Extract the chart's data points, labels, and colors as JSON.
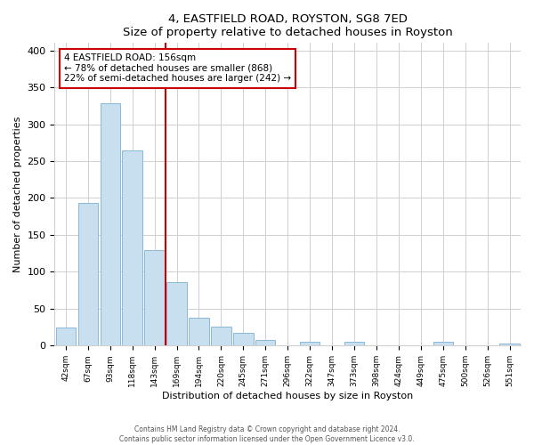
{
  "title": "4, EASTFIELD ROAD, ROYSTON, SG8 7ED",
  "subtitle": "Size of property relative to detached houses in Royston",
  "xlabel": "Distribution of detached houses by size in Royston",
  "ylabel": "Number of detached properties",
  "bar_labels": [
    "42sqm",
    "67sqm",
    "93sqm",
    "118sqm",
    "143sqm",
    "169sqm",
    "194sqm",
    "220sqm",
    "245sqm",
    "271sqm",
    "296sqm",
    "322sqm",
    "347sqm",
    "373sqm",
    "398sqm",
    "424sqm",
    "449sqm",
    "475sqm",
    "500sqm",
    "526sqm",
    "551sqm"
  ],
  "bar_heights": [
    25,
    193,
    328,
    265,
    130,
    86,
    38,
    26,
    17,
    8,
    0,
    5,
    0,
    5,
    0,
    0,
    0,
    5,
    0,
    0,
    3
  ],
  "bar_color": "#c8dff0",
  "bar_edge_color": "#8ab8d8",
  "property_line_color": "#cc0000",
  "annotation_border_color": "#cc0000",
  "annotation_line1": "4 EASTFIELD ROAD: 156sqm",
  "annotation_line2": "← 78% of detached houses are smaller (868)",
  "annotation_line3": "22% of semi-detached houses are larger (242) →",
  "ylim": [
    0,
    410
  ],
  "yticks": [
    0,
    50,
    100,
    150,
    200,
    250,
    300,
    350,
    400
  ],
  "footer_line1": "Contains HM Land Registry data © Crown copyright and database right 2024.",
  "footer_line2": "Contains public sector information licensed under the Open Government Licence v3.0.",
  "background_color": "#ffffff",
  "grid_color": "#d0d0d0"
}
